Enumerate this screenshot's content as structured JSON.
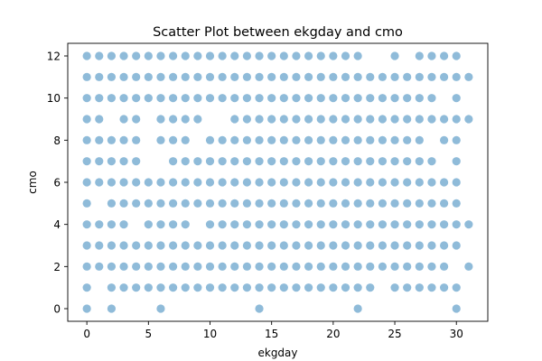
{
  "chart_data": {
    "type": "scatter",
    "title": "Scatter Plot between ekgday and cmo",
    "xlabel": "ekgday",
    "ylabel": "cmo",
    "xlim": [
      -1.55,
      32.55
    ],
    "ylim": [
      -0.6,
      12.6
    ],
    "xticks": [
      0,
      5,
      10,
      15,
      20,
      25,
      30
    ],
    "yticks": [
      0,
      2,
      4,
      6,
      8,
      10,
      12
    ],
    "grid": false,
    "marker_color": "#1f77b4",
    "marker_alpha": 0.5,
    "rows": [
      {
        "y": 12,
        "x": [
          0,
          1,
          2,
          3,
          4,
          5,
          6,
          7,
          8,
          9,
          10,
          11,
          12,
          13,
          14,
          15,
          16,
          17,
          18,
          19,
          20,
          21,
          22,
          25,
          27,
          28,
          29,
          30
        ]
      },
      {
        "y": 11,
        "x": [
          0,
          1,
          2,
          3,
          4,
          5,
          6,
          7,
          8,
          9,
          10,
          11,
          12,
          13,
          14,
          15,
          16,
          17,
          18,
          19,
          20,
          21,
          22,
          23,
          24,
          25,
          26,
          27,
          28,
          29,
          30,
          31
        ]
      },
      {
        "y": 10,
        "x": [
          0,
          1,
          2,
          3,
          4,
          5,
          6,
          7,
          8,
          9,
          10,
          11,
          12,
          13,
          14,
          15,
          16,
          17,
          18,
          19,
          20,
          21,
          22,
          23,
          24,
          25,
          26,
          27,
          28,
          30
        ]
      },
      {
        "y": 9,
        "x": [
          0,
          1,
          3,
          4,
          6,
          7,
          8,
          9,
          12,
          13,
          14,
          15,
          16,
          17,
          18,
          19,
          20,
          21,
          22,
          23,
          24,
          25,
          26,
          27,
          28,
          29,
          30,
          31
        ]
      },
      {
        "y": 8,
        "x": [
          0,
          1,
          2,
          3,
          4,
          6,
          7,
          8,
          10,
          11,
          12,
          13,
          14,
          15,
          16,
          17,
          18,
          19,
          20,
          21,
          22,
          23,
          24,
          25,
          26,
          27,
          29,
          30
        ]
      },
      {
        "y": 7,
        "x": [
          0,
          1,
          2,
          3,
          4,
          7,
          8,
          9,
          10,
          11,
          12,
          13,
          14,
          15,
          16,
          17,
          18,
          19,
          20,
          21,
          22,
          23,
          24,
          25,
          26,
          27,
          28,
          30
        ]
      },
      {
        "y": 6,
        "x": [
          0,
          1,
          2,
          3,
          4,
          5,
          6,
          7,
          8,
          9,
          10,
          11,
          12,
          13,
          14,
          15,
          16,
          17,
          18,
          19,
          20,
          21,
          22,
          23,
          24,
          25,
          26,
          27,
          28,
          29,
          30
        ]
      },
      {
        "y": 5,
        "x": [
          0,
          2,
          3,
          4,
          5,
          6,
          7,
          8,
          9,
          10,
          11,
          12,
          13,
          14,
          15,
          16,
          17,
          18,
          19,
          20,
          21,
          22,
          23,
          24,
          25,
          26,
          27,
          28,
          29,
          30
        ]
      },
      {
        "y": 4,
        "x": [
          0,
          1,
          2,
          3,
          5,
          6,
          7,
          8,
          10,
          11,
          12,
          13,
          14,
          15,
          16,
          17,
          18,
          19,
          20,
          21,
          22,
          23,
          24,
          25,
          26,
          27,
          28,
          29,
          30,
          31
        ]
      },
      {
        "y": 3,
        "x": [
          0,
          1,
          2,
          3,
          4,
          5,
          6,
          7,
          8,
          9,
          10,
          11,
          12,
          13,
          14,
          15,
          16,
          17,
          18,
          19,
          20,
          21,
          22,
          23,
          24,
          25,
          26,
          27,
          28,
          29,
          30
        ]
      },
      {
        "y": 2,
        "x": [
          0,
          1,
          2,
          3,
          4,
          5,
          6,
          7,
          8,
          9,
          10,
          11,
          12,
          13,
          14,
          15,
          16,
          17,
          18,
          19,
          20,
          21,
          22,
          23,
          24,
          25,
          26,
          27,
          28,
          29,
          31
        ]
      },
      {
        "y": 1,
        "x": [
          0,
          2,
          3,
          4,
          5,
          6,
          7,
          8,
          9,
          10,
          11,
          12,
          13,
          14,
          15,
          16,
          17,
          18,
          19,
          20,
          21,
          22,
          23,
          25,
          26,
          27,
          28,
          29,
          30
        ]
      },
      {
        "y": 0,
        "x": [
          0,
          2,
          6,
          14,
          22,
          30
        ]
      }
    ]
  }
}
